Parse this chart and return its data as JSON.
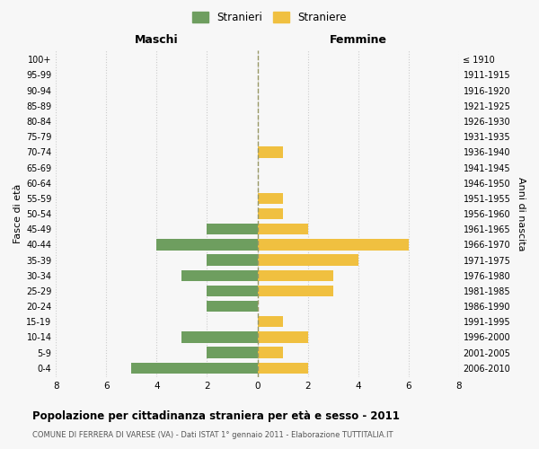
{
  "age_groups": [
    "0-4",
    "5-9",
    "10-14",
    "15-19",
    "20-24",
    "25-29",
    "30-34",
    "35-39",
    "40-44",
    "45-49",
    "50-54",
    "55-59",
    "60-64",
    "65-69",
    "70-74",
    "75-79",
    "80-84",
    "85-89",
    "90-94",
    "95-99",
    "100+"
  ],
  "birth_years": [
    "2006-2010",
    "2001-2005",
    "1996-2000",
    "1991-1995",
    "1986-1990",
    "1981-1985",
    "1976-1980",
    "1971-1975",
    "1966-1970",
    "1961-1965",
    "1956-1960",
    "1951-1955",
    "1946-1950",
    "1941-1945",
    "1936-1940",
    "1931-1935",
    "1926-1930",
    "1921-1925",
    "1916-1920",
    "1911-1915",
    "≤ 1910"
  ],
  "males": [
    5,
    2,
    3,
    0,
    2,
    2,
    3,
    2,
    4,
    2,
    0,
    0,
    0,
    0,
    0,
    0,
    0,
    0,
    0,
    0,
    0
  ],
  "females": [
    2,
    1,
    2,
    1,
    0,
    3,
    3,
    4,
    6,
    2,
    1,
    1,
    0,
    0,
    1,
    0,
    0,
    0,
    0,
    0,
    0
  ],
  "male_color": "#6e9e5f",
  "female_color": "#f0c040",
  "background_color": "#f7f7f7",
  "grid_color": "#cccccc",
  "center_line_color": "#999966",
  "title": "Popolazione per cittadinanza straniera per età e sesso - 2011",
  "subtitle": "COMUNE DI FERRERA DI VARESE (VA) - Dati ISTAT 1° gennaio 2011 - Elaborazione TUTTITALIA.IT",
  "header_left": "Maschi",
  "header_right": "Femmine",
  "ylabel_left": "Fasce di età",
  "ylabel_right": "Anni di nascita",
  "legend_male": "Stranieri",
  "legend_female": "Straniere",
  "xlim": 8
}
